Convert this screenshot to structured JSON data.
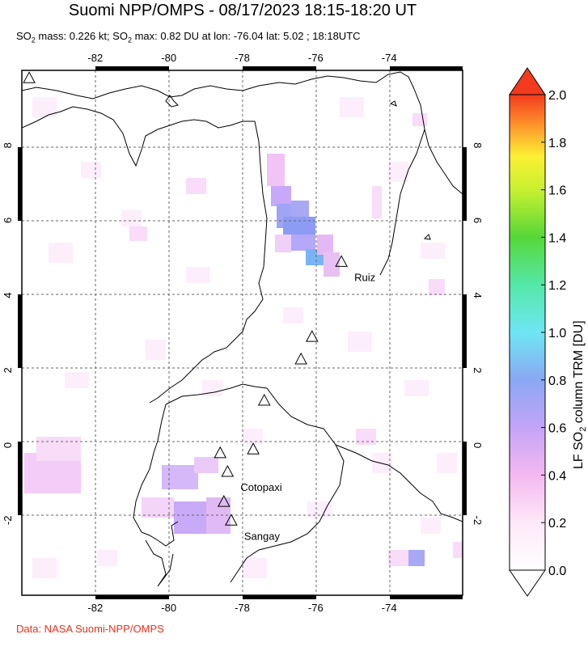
{
  "title": "Suomi NPP/OMPS - 08/17/2023 18:15-18:20 UT",
  "subtitle": {
    "mass_prefix": "SO",
    "mass_sub": "2",
    "mass_text": " mass: 0.226 kt; SO",
    "max_sub": "2",
    "max_text": " max: 0.82 DU at lon: -76.04 lat: 5.02 ; 18:18UTC"
  },
  "credit": "Data: NASA Suomi-NPP/OMPS",
  "map": {
    "lon_range": [
      -84,
      -72
    ],
    "lat_range": [
      -4,
      10
    ],
    "lon_ticks": [
      -82,
      -80,
      -78,
      -76,
      -74
    ],
    "lat_ticks": [
      -2,
      0,
      2,
      4,
      6,
      8
    ],
    "lon_tick_labels": [
      "-82",
      "-80",
      "-78",
      "-76",
      "-74"
    ],
    "lat_tick_labels": [
      "-2",
      "0",
      "2",
      "4",
      "6",
      "8"
    ],
    "volcanoes": [
      {
        "name": "Ruiz",
        "lon": -75.3,
        "lat": 4.9,
        "label": "Ruiz"
      },
      {
        "name": "",
        "lon": -76.1,
        "lat": 2.9,
        "label": ""
      },
      {
        "name": "",
        "lon": -76.4,
        "lat": 2.3,
        "label": ""
      },
      {
        "name": "",
        "lon": -77.4,
        "lat": 1.2,
        "label": ""
      },
      {
        "name": "",
        "lon": -77.7,
        "lat": -0.1,
        "label": ""
      },
      {
        "name": "",
        "lon": -78.6,
        "lat": -0.2,
        "label": ""
      },
      {
        "name": "Cotopaxi",
        "lon": -78.4,
        "lat": -0.7,
        "label": "Cotopaxi"
      },
      {
        "name": "",
        "lon": -78.5,
        "lat": -1.5,
        "label": ""
      },
      {
        "name": "Sangay",
        "lon": -78.3,
        "lat": -2.0,
        "label": "Sangay"
      },
      {
        "name": "",
        "lon": -83.8,
        "lat": 9.8,
        "label": ""
      }
    ]
  },
  "colorbar": {
    "title": "LF SO",
    "title_sub": "2",
    "title_rest": " column TRM [DU]",
    "ticks": [
      "0.0",
      "0.2",
      "0.4",
      "0.6",
      "0.8",
      "1.0",
      "1.2",
      "1.4",
      "1.6",
      "1.8",
      "2.0"
    ],
    "min": 0,
    "max": 2
  },
  "colors": {
    "plume_light": "#f8dcf8",
    "plume_mid": "#ecb4f4",
    "plume_violet": "#c8a8f8",
    "plume_blue": "#8c9cf4",
    "plume_cyan": "#78b4f4",
    "grid": "#666666"
  }
}
